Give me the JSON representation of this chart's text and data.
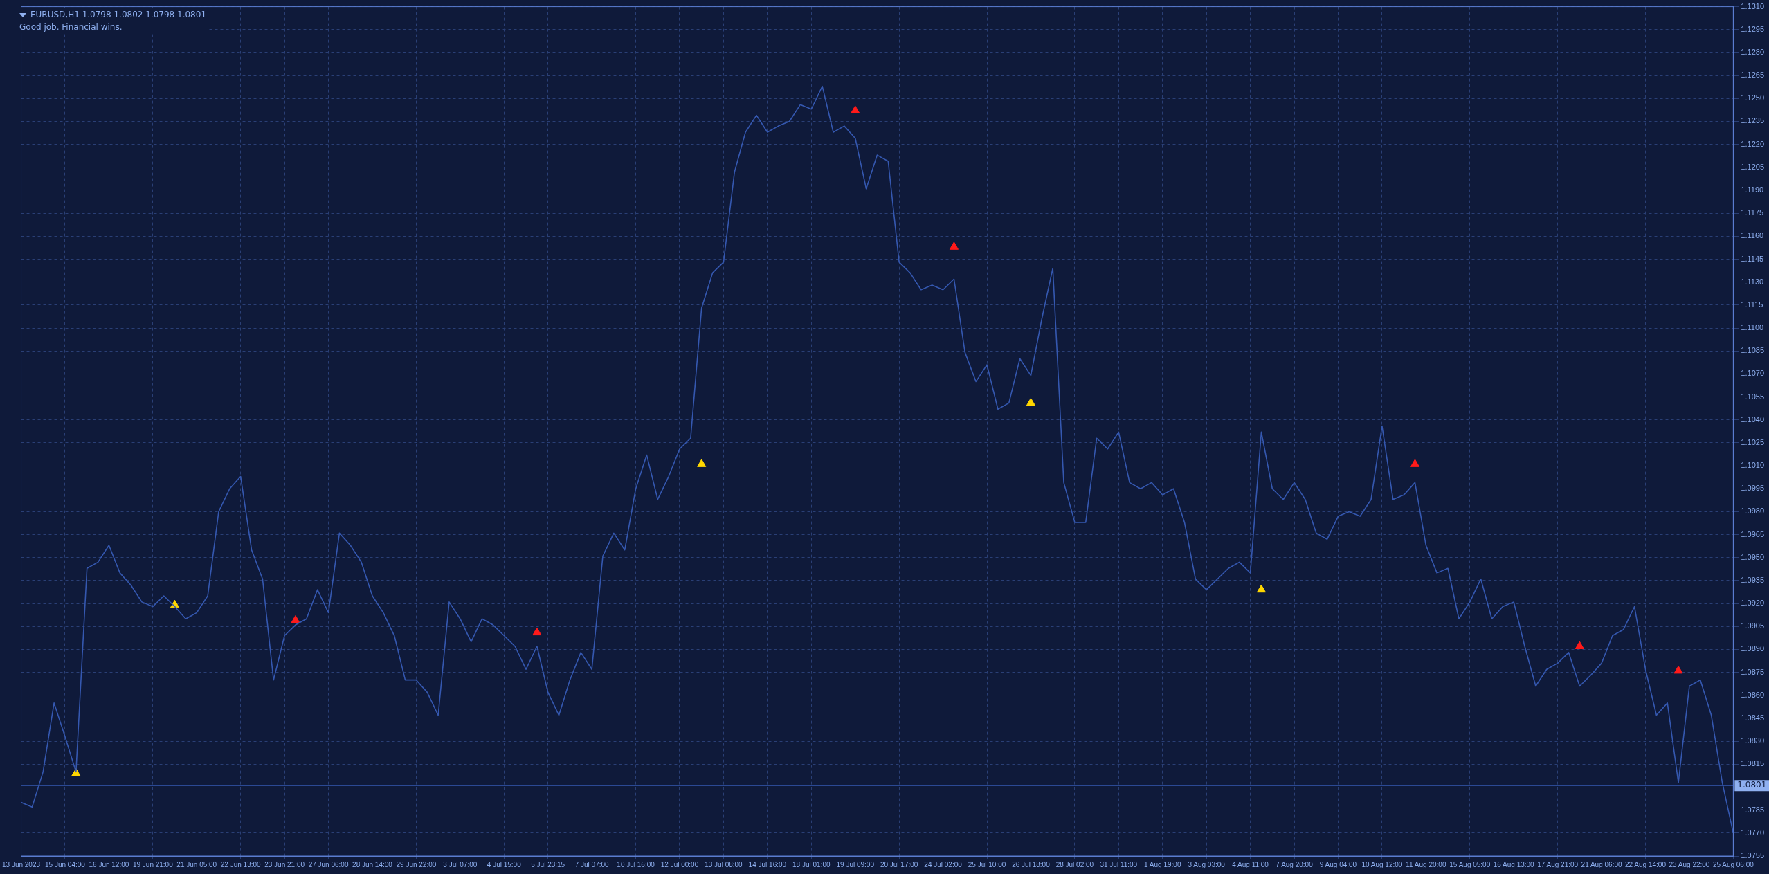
{
  "chart_data": {
    "type": "line",
    "title": "EURUSD,H1  1.0798 1.0802 1.0798 1.0801",
    "subtitle": "Good job. Financial wins.",
    "categories": [
      "13 Jun 2023",
      null,
      null,
      null,
      "15 Jun 04:00",
      null,
      null,
      null,
      "16 Jun 12:00",
      null,
      null,
      null,
      "19 Jun 21:00",
      null,
      null,
      null,
      "21 Jun 05:00",
      null,
      null,
      null,
      "22 Jun 13:00",
      null,
      null,
      null,
      "23 Jun 21:00",
      null,
      null,
      null,
      "27 Jun 06:00",
      null,
      null,
      null,
      "28 Jun 14:00",
      null,
      null,
      null,
      "29 Jun 22:00",
      null,
      null,
      null,
      "3 Jul 07:00",
      null,
      null,
      null,
      "4 Jul 15:00",
      null,
      null,
      null,
      "5 Jul 23:15",
      null,
      null,
      null,
      "7 Jul 07:00",
      null,
      null,
      null,
      "10 Jul 16:00",
      null,
      null,
      null,
      "12 Jul 00:00",
      null,
      null,
      null,
      "13 Jul 08:00",
      null,
      null,
      null,
      "14 Jul 16:00",
      null,
      null,
      null,
      "18 Jul 01:00",
      null,
      null,
      null,
      "19 Jul 09:00",
      null,
      null,
      null,
      "20 Jul 17:00",
      null,
      null,
      null,
      "24 Jul 02:00",
      null,
      null,
      null,
      "25 Jul 10:00",
      null,
      null,
      null,
      "26 Jul 18:00",
      null,
      null,
      null,
      "28 Jul 02:00",
      null,
      null,
      null,
      "31 Jul 11:00",
      null,
      null,
      null,
      "1 Aug 19:00",
      null,
      null,
      null,
      "3 Aug 03:00",
      null,
      null,
      null,
      "4 Aug 11:00",
      null,
      null,
      null,
      "7 Aug 20:00",
      null,
      null,
      null,
      "9 Aug 04:00",
      null,
      null,
      null,
      "10 Aug 12:00",
      null,
      null,
      null,
      "11 Aug 20:00",
      null,
      null,
      null,
      "15 Aug 05:00",
      null,
      null,
      null,
      "16 Aug 13:00",
      null,
      null,
      null,
      "17 Aug 21:00",
      null,
      null,
      null,
      "21 Aug 06:00",
      null,
      null,
      null,
      "22 Aug 14:00",
      null,
      null,
      null,
      "23 Aug 22:00",
      null,
      null,
      null,
      "25 Aug 06:00"
    ],
    "series": [
      {
        "type": "line",
        "color": "#3558b0",
        "marker": "none",
        "values": [
          1.079,
          1.0787,
          1.081,
          1.0855,
          1.0833,
          1.081,
          1.0943,
          1.0947,
          1.0958,
          1.094,
          1.0932,
          1.0921,
          1.0918,
          1.0925,
          1.0918,
          1.091,
          1.0914,
          1.0925,
          1.098,
          1.0995,
          1.1003,
          1.0955,
          1.0936,
          1.087,
          1.0899,
          1.0906,
          1.091,
          1.0929,
          1.0914,
          1.0966,
          1.0958,
          1.0947,
          1.0925,
          1.0914,
          1.0899,
          1.087,
          1.087,
          1.0862,
          1.0847,
          1.0921,
          1.091,
          1.0895,
          1.091,
          1.0906,
          1.0899,
          1.0892,
          1.0877,
          1.0892,
          1.0862,
          1.0847,
          1.087,
          1.0888,
          1.0877,
          1.0951,
          1.0966,
          1.0955,
          1.0995,
          1.1017,
          1.0988,
          1.1003,
          1.1021,
          1.1028,
          1.1113,
          1.1136,
          1.1143,
          1.1202,
          1.1228,
          1.1239,
          1.1228,
          1.1232,
          1.1235,
          1.1246,
          1.1243,
          1.1258,
          1.1228,
          1.1232,
          1.1224,
          1.1191,
          1.1213,
          1.1209,
          1.1143,
          1.1136,
          1.1125,
          1.1128,
          1.1125,
          1.1132,
          1.1084,
          1.1065,
          1.1076,
          1.1047,
          1.1051,
          1.108,
          1.1069,
          1.1106,
          1.1139,
          1.0999,
          1.0973,
          1.0973,
          1.1028,
          1.1021,
          1.1032,
          1.0999,
          1.0995,
          1.0999,
          1.0991,
          1.0995,
          1.0973,
          1.0936,
          1.0929,
          1.0936,
          1.0943,
          1.0947,
          1.094,
          1.1032,
          1.0995,
          1.0988,
          1.0999,
          1.0988,
          1.0966,
          1.0962,
          1.0977,
          1.098,
          1.0977,
          1.0988,
          1.1036,
          1.0988,
          1.0991,
          1.0999,
          1.0958,
          1.094,
          1.0943,
          1.091,
          1.0921,
          1.0936,
          1.091,
          1.0918,
          1.0921,
          1.0892,
          1.0866,
          1.0877,
          1.0881,
          1.0888,
          1.0866,
          1.0873,
          1.0881,
          1.0899,
          1.0903,
          1.0918,
          1.0877,
          1.0847,
          1.0855,
          1.0803,
          1.0866,
          1.087,
          1.0847,
          1.0803,
          1.077
        ]
      },
      {
        "type": "scatter",
        "color": "#ffd700",
        "marker": "triangle",
        "values": [
          null,
          null,
          null,
          null,
          null,
          1.0809,
          null,
          null,
          null,
          null,
          null,
          null,
          null,
          null,
          1.0919,
          null,
          null,
          null,
          null,
          null,
          null,
          null,
          null,
          null,
          null,
          null,
          null,
          null,
          null,
          null,
          null,
          null,
          null,
          null,
          null,
          null,
          null,
          null,
          null,
          null,
          null,
          null,
          null,
          null,
          null,
          null,
          null,
          null,
          null,
          null,
          null,
          null,
          null,
          null,
          null,
          null,
          null,
          null,
          null,
          null,
          null,
          null,
          1.1011,
          null,
          null,
          null,
          null,
          null,
          null,
          null,
          null,
          null,
          null,
          null,
          null,
          null,
          null,
          null,
          null,
          null,
          null,
          null,
          null,
          null,
          null,
          null,
          null,
          null,
          null,
          null,
          null,
          null,
          1.1051,
          null,
          null,
          null,
          null,
          null,
          null,
          null,
          null,
          null,
          null,
          null,
          null,
          null,
          null,
          null,
          null,
          null,
          null,
          null,
          null,
          1.0929,
          null,
          null,
          null,
          null,
          null,
          null,
          null,
          null,
          null,
          null,
          null,
          null,
          null,
          null,
          null,
          null,
          null,
          null,
          null,
          null,
          null,
          null,
          null,
          null,
          null,
          null,
          null,
          null,
          null,
          null,
          null,
          null,
          null,
          null,
          null,
          null,
          null,
          null,
          null,
          null,
          null,
          null,
          null
        ]
      },
      {
        "type": "scatter",
        "color": "#ff1a1a",
        "marker": "triangle",
        "values": [
          null,
          null,
          null,
          null,
          null,
          null,
          null,
          null,
          null,
          null,
          null,
          null,
          null,
          null,
          null,
          null,
          null,
          null,
          null,
          null,
          null,
          null,
          null,
          null,
          null,
          1.0909,
          null,
          null,
          null,
          null,
          null,
          null,
          null,
          null,
          null,
          null,
          null,
          null,
          null,
          null,
          null,
          null,
          null,
          null,
          null,
          null,
          null,
          1.0901,
          null,
          null,
          null,
          null,
          null,
          null,
          null,
          null,
          null,
          null,
          null,
          null,
          null,
          null,
          null,
          null,
          null,
          null,
          null,
          null,
          null,
          null,
          null,
          null,
          null,
          null,
          null,
          null,
          1.1242,
          null,
          null,
          null,
          null,
          null,
          null,
          null,
          null,
          1.1153,
          null,
          null,
          null,
          null,
          null,
          null,
          null,
          null,
          null,
          null,
          null,
          null,
          null,
          null,
          null,
          null,
          null,
          null,
          null,
          null,
          null,
          null,
          null,
          null,
          null,
          null,
          null,
          null,
          null,
          null,
          null,
          null,
          null,
          null,
          null,
          null,
          null,
          null,
          null,
          null,
          null,
          1.1011,
          null,
          null,
          null,
          null,
          null,
          null,
          null,
          null,
          null,
          null,
          null,
          null,
          null,
          null,
          1.0892,
          null,
          null,
          null,
          null,
          null,
          null,
          null,
          null,
          1.0876,
          null,
          null,
          null,
          null,
          null
        ]
      }
    ],
    "ylim": [
      1.0755,
      1.131
    ],
    "yticks": [
      1.0755,
      {
        "value": 1.077,
        "label": "1.0770"
      },
      1.0785,
      {
        "value": 1.08,
        "label": null
      },
      1.0815,
      {
        "value": 1.083,
        "label": "1.0830"
      },
      1.0845,
      {
        "value": 1.086,
        "label": "1.0860"
      },
      1.0875,
      {
        "value": 1.089,
        "label": "1.0890"
      },
      1.0905,
      {
        "value": 1.092,
        "label": "1.0920"
      },
      1.0935,
      {
        "value": 1.095,
        "label": "1.0950"
      },
      1.0965,
      {
        "value": 1.098,
        "label": "1.0980"
      },
      1.0995,
      {
        "value": 1.101,
        "label": "1.1010"
      },
      1.1025,
      {
        "value": 1.104,
        "label": "1.1040"
      },
      1.1055,
      {
        "value": 1.107,
        "label": "1.1070"
      },
      1.1085,
      {
        "value": 1.11,
        "label": "1.1100"
      },
      1.1115,
      {
        "value": 1.113,
        "label": "1.1130"
      },
      1.1145,
      {
        "value": 1.116,
        "label": "1.1160"
      },
      1.1175,
      {
        "value": 1.119,
        "label": "1.1190"
      },
      1.1205,
      {
        "value": 1.122,
        "label": "1.1220"
      },
      1.1235,
      {
        "value": 1.125,
        "label": "1.1250"
      },
      1.1265,
      {
        "value": 1.128,
        "label": "1.1280"
      },
      1.1295,
      {
        "value": 1.131,
        "label": "1.1310"
      }
    ],
    "ref_lines": [
      {
        "axis": "y",
        "value": 1.0801,
        "label": "1.0801",
        "color": "#3558b0"
      }
    ],
    "grid": true,
    "line_style": "solid"
  }
}
